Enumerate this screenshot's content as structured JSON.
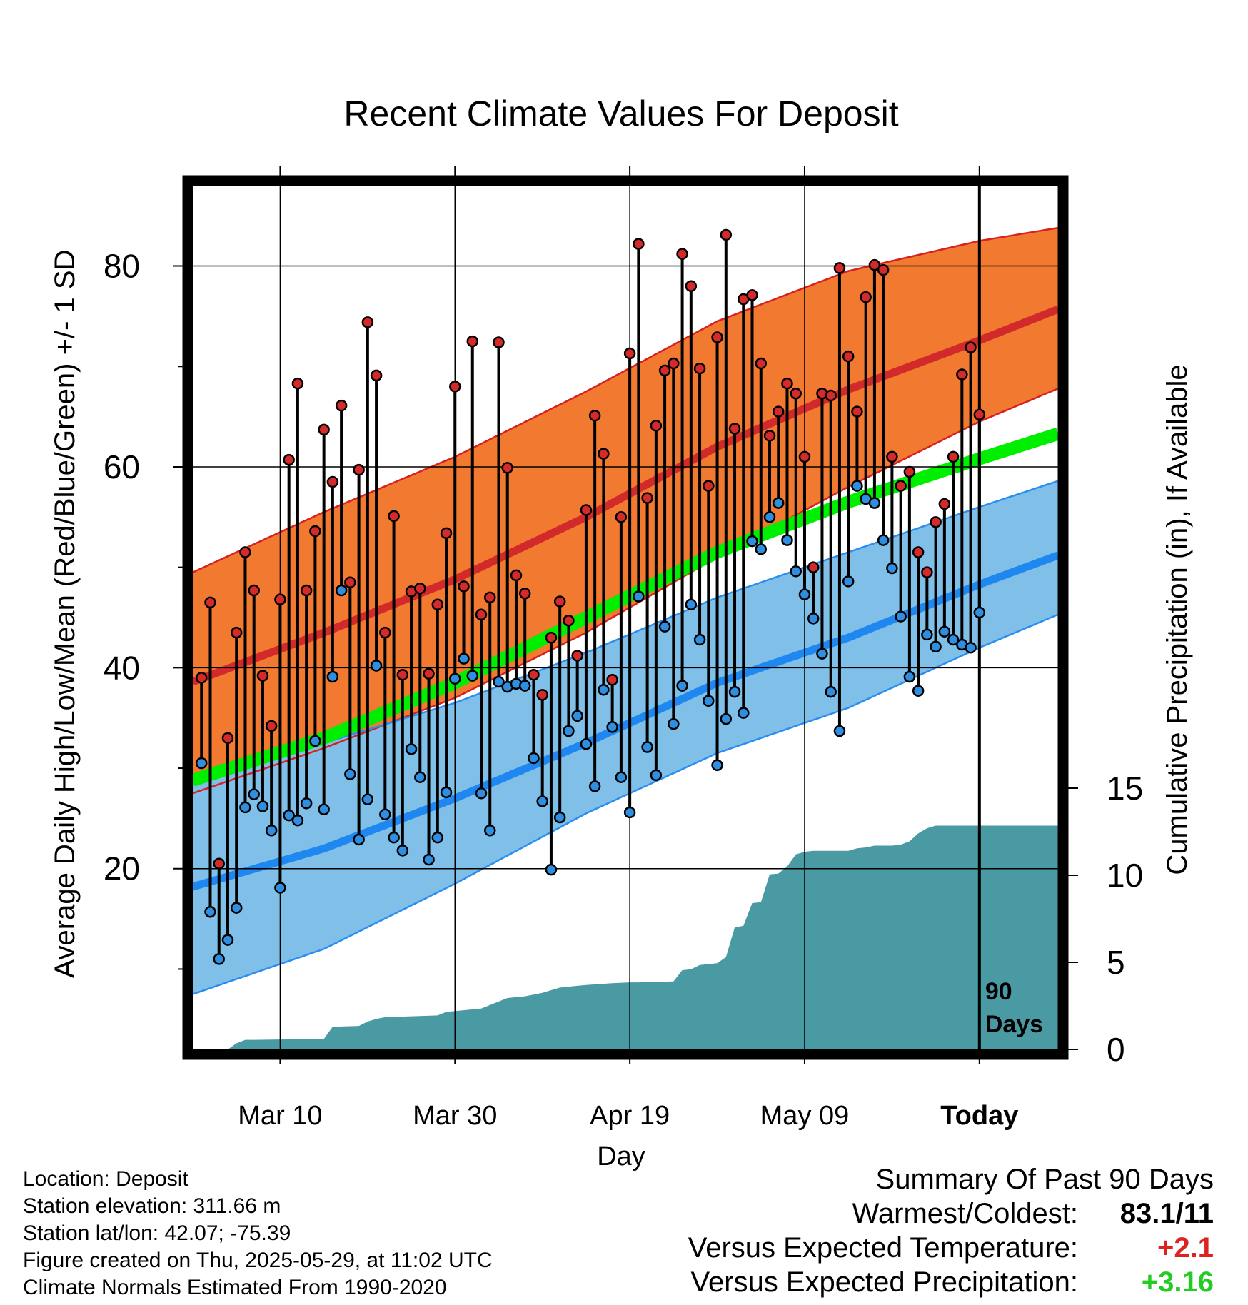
{
  "chart_data": {
    "type": "line",
    "title": "Recent Climate Values For Deposit",
    "xlabel": "Day",
    "ylabel_left": "Average Daily High/Low/Mean (Red/Blue/Green) +/- 1 SD",
    "ylabel_right": "Cumulative Precipitation (in), If Available",
    "x_ticks": [
      "Mar 10",
      "Mar 30",
      "Apr 19",
      "May 09",
      "Today"
    ],
    "x_tick_days": [
      10,
      30,
      50,
      70,
      90
    ],
    "xlim": [
      0,
      99
    ],
    "ylim_left": [
      2,
      88
    ],
    "y_ticks_left": [
      20,
      40,
      60,
      80
    ],
    "ylim_right": [
      0,
      15
    ],
    "y_ticks_right": [
      0,
      5,
      10,
      15
    ],
    "grid": true,
    "today_marker": {
      "day": 90,
      "label_line1": "90",
      "label_line2": "Days"
    },
    "colors": {
      "high_band": "#f27a30",
      "high_line": "#d22a2a",
      "high_edge": "#d82020",
      "low_band": "#80c0e8",
      "low_line": "#1e88f0",
      "low_edge": "#2a8ef0",
      "mean_line": "#00ee00",
      "precip": "#4a9aa4",
      "high_dot": "#d42a2a",
      "low_dot": "#2f8ee0",
      "positive_temp": "#dd2222",
      "positive_precip": "#22cc22"
    },
    "normal_high": {
      "days": [
        0,
        15,
        30,
        45,
        60,
        75,
        90,
        99
      ],
      "values": [
        38.6,
        43.5,
        48.8,
        55.0,
        62.0,
        67.7,
        72.6,
        75.7
      ]
    },
    "normal_high_plus_sd": {
      "days": [
        0,
        15,
        30,
        45,
        60,
        75,
        90,
        99
      ],
      "values": [
        49.5,
        55.5,
        61.0,
        67.5,
        74.5,
        79.5,
        82.5,
        83.8
      ]
    },
    "normal_high_minus_sd": {
      "days": [
        0,
        15,
        30,
        45,
        60,
        75,
        90,
        99
      ],
      "values": [
        27.5,
        32.0,
        37.0,
        43.5,
        51.0,
        58.0,
        64.5,
        67.8
      ]
    },
    "normal_low": {
      "days": [
        0,
        15,
        30,
        45,
        60,
        75,
        90,
        99
      ],
      "values": [
        18.2,
        22.0,
        27.0,
        32.5,
        38.5,
        43.0,
        48.3,
        51.2
      ]
    },
    "normal_low_plus_sd": {
      "days": [
        0,
        15,
        30,
        45,
        60,
        75,
        90,
        99
      ],
      "values": [
        28.4,
        32.5,
        36.5,
        41.5,
        47.0,
        51.5,
        56.0,
        58.6
      ]
    },
    "normal_low_minus_sd": {
      "days": [
        0,
        15,
        30,
        45,
        60,
        75,
        90,
        99
      ],
      "values": [
        7.5,
        12.0,
        18.5,
        25.5,
        31.5,
        36.0,
        42.0,
        45.3
      ]
    },
    "normal_mean": {
      "days": [
        0,
        15,
        30,
        45,
        60,
        75,
        90,
        99
      ],
      "values": [
        28.8,
        33.0,
        38.5,
        45.0,
        51.5,
        56.5,
        60.8,
        63.3
      ]
    },
    "daily_high": [
      39,
      46.5,
      20.5,
      33,
      43.5,
      51.5,
      47.7,
      39.2,
      34.2,
      46.8,
      60.7,
      68.3,
      47.7,
      53.6,
      63.7,
      58.5,
      66.1,
      48.5,
      59.7,
      74.4,
      69.1,
      43.5,
      55.1,
      39.3,
      47.6,
      47.9,
      39.4,
      46.3,
      53.4,
      68,
      48.1,
      72.5,
      45.3,
      47,
      72.4,
      59.9,
      49.2,
      47.4,
      39.3,
      37.3,
      43,
      46.6,
      44.7,
      41.2,
      55.7,
      65.1,
      61.3,
      38.8,
      55,
      71.3,
      82.2,
      56.9,
      64.1,
      69.6,
      70.3,
      81.2,
      78,
      69.8,
      58.1,
      72.9,
      83.1,
      63.8,
      76.7,
      77.1,
      70.3,
      63.1,
      65.5,
      68.3,
      67.3,
      61,
      50,
      67.3,
      67.1,
      79.8,
      71,
      65.5,
      76.9,
      80.1,
      79.6,
      61,
      58.1,
      59.5,
      51.5,
      49.5,
      54.5,
      56.3,
      61,
      69.2,
      71.9,
      65.2
    ],
    "daily_low": [
      30.5,
      15.7,
      11,
      12.9,
      16.1,
      26.1,
      27.4,
      26.2,
      23.8,
      18.1,
      25.3,
      24.8,
      26.5,
      32.7,
      25.9,
      39.1,
      47.7,
      29.4,
      22.9,
      26.9,
      40.2,
      25.4,
      23.1,
      21.8,
      31.9,
      29.1,
      20.9,
      23.1,
      27.6,
      38.9,
      40.9,
      39.2,
      27.5,
      23.8,
      38.6,
      38.1,
      38.4,
      38.2,
      31,
      26.7,
      19.9,
      25.1,
      33.7,
      35.2,
      32.4,
      28.2,
      37.8,
      34.1,
      29.1,
      25.6,
      47.1,
      32.1,
      29.3,
      44.1,
      34.4,
      38.2,
      46.3,
      42.8,
      36.7,
      30.3,
      34.9,
      37.6,
      35.5,
      52.6,
      51.8,
      55,
      56.4,
      52.7,
      49.6,
      47.3,
      44.9,
      41.4,
      37.6,
      33.7,
      48.6,
      58.1,
      56.8,
      56.4,
      52.7,
      49.9,
      45.1,
      39.1,
      37.7,
      43.3,
      42.1,
      43.6,
      42.8,
      42.3,
      42,
      45.5
    ],
    "cumulative_precip": {
      "days": [
        0,
        4,
        5,
        6,
        7,
        15,
        16,
        19,
        20,
        21,
        22,
        28,
        29,
        33,
        36,
        38,
        40,
        42,
        44,
        45,
        48,
        50,
        51,
        55,
        56,
        57,
        58,
        60,
        61,
        62,
        63,
        64,
        65,
        66,
        67,
        68,
        69,
        70,
        71,
        75,
        76,
        77,
        78,
        80,
        81,
        82,
        83,
        84,
        85,
        99
      ],
      "values": [
        0,
        0,
        0.35,
        0.55,
        0.55,
        0.6,
        1.3,
        1.35,
        1.6,
        1.75,
        1.85,
        1.95,
        2.15,
        2.35,
        2.95,
        3.05,
        3.25,
        3.55,
        3.65,
        3.7,
        3.8,
        3.85,
        3.85,
        3.9,
        4.55,
        4.6,
        4.85,
        4.95,
        5.3,
        7.0,
        7.1,
        8.4,
        8.45,
        10.05,
        10.1,
        10.5,
        11.2,
        11.35,
        11.4,
        11.4,
        11.55,
        11.6,
        11.7,
        11.7,
        11.75,
        11.95,
        12.4,
        12.7,
        12.85,
        12.85
      ]
    }
  },
  "footer": {
    "location": "Location: Deposit",
    "elevation": "Station elevation: 311.66 m",
    "latlon": "Station lat/lon: 42.07; -75.39",
    "created": "Figure created on Thu, 2025-05-29, at 11:02 UTC",
    "normals": "Climate Normals Estimated From 1990-2020"
  },
  "summary": {
    "heading": "Summary Of Past 90 Days",
    "warm_cold_label": "Warmest/Coldest:",
    "warm_cold_value": "83.1/11",
    "temp_label": "Versus Expected Temperature:",
    "temp_value": "+2.1",
    "precip_label": "Versus Expected Precipitation:",
    "precip_value": "+3.16"
  }
}
